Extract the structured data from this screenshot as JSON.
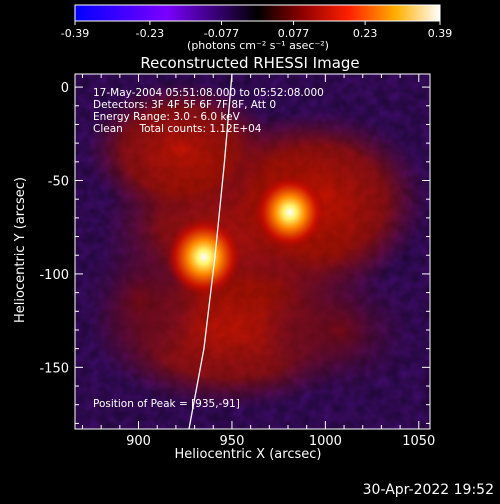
{
  "colorbar": {
    "tick_labels": [
      "-0.39",
      "-0.23",
      "-0.077",
      "0.077",
      "0.23",
      "0.39"
    ],
    "units_label": "(photons cm⁻² s⁻¹ asec⁻²)",
    "range": [
      -0.39,
      0.39
    ]
  },
  "chart_data": {
    "type": "heatmap",
    "title": "Reconstructed RHESSI Image",
    "xlabel": "Heliocentric X (arcsec)",
    "ylabel": "Heliocentric Y (arcsec)",
    "xlim": [
      866,
      1056
    ],
    "ylim": [
      -183,
      7
    ],
    "xticks": [
      900,
      950,
      1000,
      1050
    ],
    "yticks": [
      0,
      -50,
      -100,
      -150
    ],
    "sources": [
      {
        "x": 935,
        "y": -91,
        "relative_intensity": 1.0
      },
      {
        "x": 981,
        "y": -67,
        "relative_intensity": 0.92
      }
    ],
    "limb_curve": [
      [
        950,
        7
      ],
      [
        946,
        -40
      ],
      [
        941,
        -90
      ],
      [
        935,
        -140
      ],
      [
        927,
        -183
      ]
    ],
    "annotations": [
      "17-May-2004 05:51:08.000 to 05:52:08.000",
      "Detectors: 3F 4F 5F 6F 7F 8F, Att 0",
      "Energy Range: 3.0 - 6.0 keV",
      "Clean     Total counts: 1.12E+04",
      "Position of Peak = [935,-91]"
    ]
  },
  "footer_timestamp": "30-Apr-2022 19:52"
}
